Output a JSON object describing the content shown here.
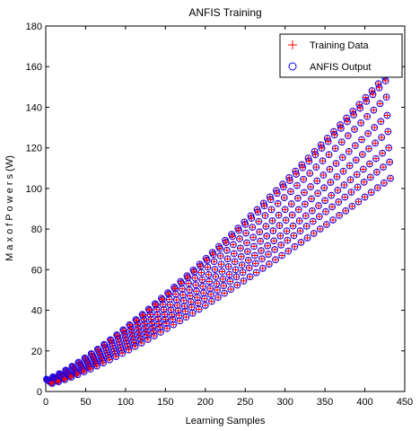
{
  "colors": {
    "training_marker": "#ff0000",
    "anfis_marker": "#0000ff",
    "axes": "#000000",
    "background": "#ffffff"
  },
  "chart_data": {
    "type": "scatter",
    "title": "ANFIS Training",
    "xlabel": "Learning Samples",
    "ylabel": "M a x  o f  P o w e r s  (W)",
    "xlim": [
      0,
      450
    ],
    "ylim": [
      0,
      180
    ],
    "xticks": [
      0,
      50,
      100,
      150,
      200,
      250,
      300,
      350,
      400,
      450
    ],
    "yticks": [
      0,
      20,
      40,
      60,
      80,
      100,
      120,
      140,
      160,
      180
    ],
    "grid": false,
    "legend_position": "top-right",
    "markers": {
      "Training Data": "plus",
      "ANFIS Output": "circle"
    },
    "series": [
      {
        "name": "Training Data",
        "groups": 8,
        "samples_per_group": 54,
        "x": [
          1,
          432
        ],
        "group_start_y": [
          6.0,
          5.8,
          5.5,
          5.3,
          5.0,
          4.7,
          4.4,
          4.0
        ],
        "group_end_y": [
          155,
          153,
          145,
          136,
          128,
          120,
          113,
          105
        ]
      },
      {
        "name": "ANFIS Output",
        "groups": 8,
        "samples_per_group": 54,
        "x": [
          1,
          432
        ],
        "group_start_y": [
          6.0,
          5.8,
          5.5,
          5.3,
          5.0,
          4.7,
          4.4,
          4.0
        ],
        "group_end_y": [
          155,
          153,
          145,
          136,
          128,
          120,
          113,
          105
        ]
      }
    ]
  }
}
